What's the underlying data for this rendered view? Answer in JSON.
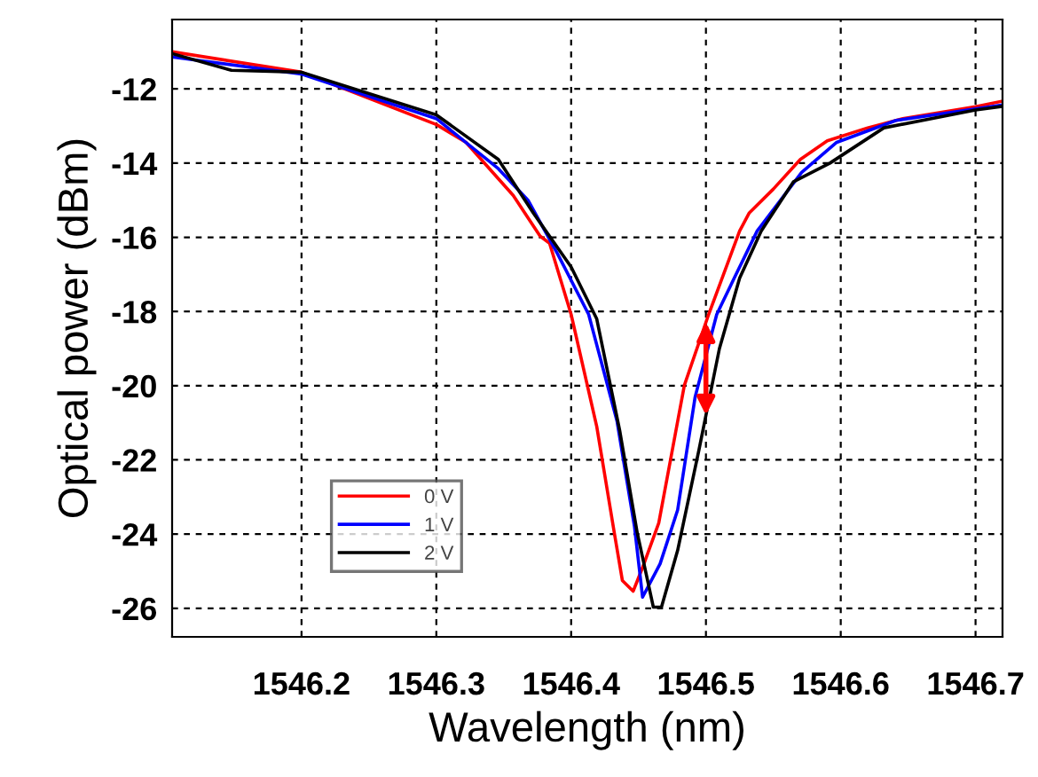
{
  "chart_data": {
    "type": "line",
    "xlabel": "Wavelength (nm)",
    "ylabel": "Optical power (dBm)",
    "xlim": [
      1546.104,
      1546.72
    ],
    "ylim": [
      -26.77,
      -10.13
    ],
    "xticks": [
      1546.2,
      1546.3,
      1546.4,
      1546.5,
      1546.6,
      1546.7
    ],
    "yticks": [
      -26,
      -24,
      -22,
      -20,
      -18,
      -16,
      -14,
      -12
    ],
    "grid": true,
    "legend": "bottom left",
    "line_style": "solid",
    "marker": "none",
    "series": [
      {
        "name": "0 V",
        "color": "#ff0000",
        "x": [
          1546.104,
          1546.2,
          1546.3,
          1546.322,
          1546.357,
          1546.377,
          1546.384,
          1546.4,
          1546.419,
          1546.432,
          1546.438,
          1546.446,
          1546.453,
          1546.465,
          1546.484,
          1546.502,
          1546.525,
          1546.532,
          1546.55,
          1546.57,
          1546.59,
          1546.62,
          1546.646,
          1546.7,
          1546.72
        ],
        "values": [
          -11.0,
          -11.55,
          -12.96,
          -13.44,
          -14.87,
          -15.97,
          -16.16,
          -18.08,
          -21.1,
          -23.96,
          -25.25,
          -25.54,
          -24.9,
          -23.7,
          -19.99,
          -18.08,
          -15.83,
          -15.35,
          -14.7,
          -13.9,
          -13.4,
          -13.05,
          -12.8,
          -12.48,
          -12.33
        ]
      },
      {
        "name": "1 V",
        "color": "#0000ff",
        "x": [
          1546.104,
          1546.2,
          1546.3,
          1546.346,
          1546.368,
          1546.39,
          1546.413,
          1546.434,
          1546.447,
          1546.453,
          1546.466,
          1546.479,
          1546.492,
          1546.508,
          1546.521,
          1546.538,
          1546.571,
          1546.597,
          1546.641,
          1546.72
        ],
        "values": [
          -11.14,
          -11.6,
          -12.8,
          -14.15,
          -15.0,
          -16.45,
          -18.08,
          -20.95,
          -23.8,
          -25.7,
          -24.8,
          -23.35,
          -20.3,
          -18.08,
          -17.1,
          -15.83,
          -14.25,
          -13.44,
          -12.85,
          -12.43
        ]
      },
      {
        "name": "2 V",
        "color": "#000000",
        "x": [
          1546.104,
          1546.148,
          1546.2,
          1546.3,
          1546.346,
          1546.372,
          1546.4,
          1546.419,
          1546.436,
          1546.449,
          1546.461,
          1546.467,
          1546.479,
          1546.495,
          1546.51,
          1546.525,
          1546.541,
          1546.565,
          1546.592,
          1546.632,
          1546.7,
          1546.72
        ],
        "values": [
          -11.05,
          -11.5,
          -11.55,
          -12.7,
          -13.9,
          -15.35,
          -16.8,
          -18.2,
          -21.2,
          -23.96,
          -25.97,
          -25.97,
          -24.44,
          -21.7,
          -19.0,
          -17.1,
          -15.83,
          -14.5,
          -14.0,
          -13.05,
          -12.57,
          -12.47
        ]
      }
    ]
  }
}
